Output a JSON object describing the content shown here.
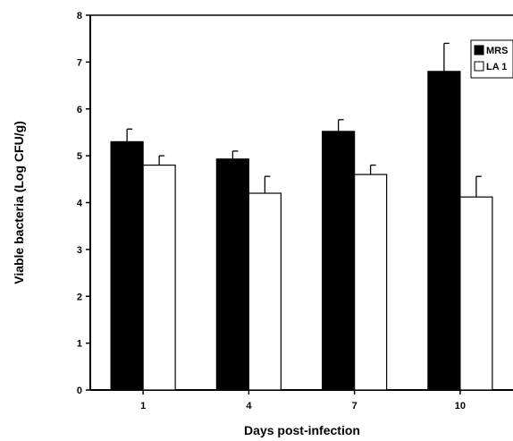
{
  "chart_data": {
    "type": "bar",
    "xlabel": "Days post-infection",
    "ylabel": "Viable bacteria (Log CFU/g)",
    "ylim": [
      0,
      8
    ],
    "yticks": [
      0,
      1,
      2,
      3,
      4,
      5,
      6,
      7,
      8
    ],
    "grid": false,
    "legend_position": "top-right",
    "categories": [
      "1",
      "4",
      "7",
      "10"
    ],
    "series": [
      {
        "name": "MRS",
        "color": "#000000",
        "values": [
          5.3,
          4.93,
          5.52,
          6.8
        ],
        "errors": [
          0.27,
          0.17,
          0.25,
          0.6
        ]
      },
      {
        "name": "LA 1",
        "color": "#ffffff",
        "values": [
          4.8,
          4.2,
          4.6,
          4.12
        ],
        "errors": [
          0.2,
          0.36,
          0.2,
          0.44
        ]
      }
    ]
  }
}
